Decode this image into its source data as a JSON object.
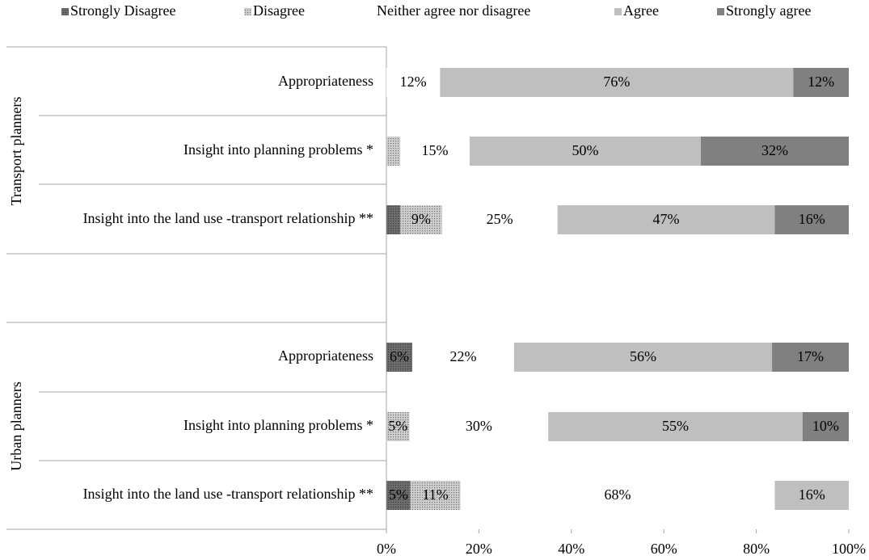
{
  "chart_data": {
    "type": "stacked-bar-horizontal",
    "groups": [
      {
        "name": "Transport planners",
        "categories": [
          "Appropriateness",
          "Insight into planning problems *",
          "Insight into the land use -transport relationship **"
        ]
      },
      {
        "name": "Urban planners",
        "categories": [
          "Appropriateness",
          "Insight into planning problems *",
          "Insight into the land use -transport relationship **"
        ]
      }
    ],
    "series": [
      {
        "name": "Strongly Disagree",
        "color": "#6e6e6e",
        "hatch": "dots",
        "values": [
          0,
          0,
          3,
          5.6,
          0,
          5.2
        ],
        "value_labels": [
          null,
          null,
          null,
          "6%",
          null,
          "5%"
        ]
      },
      {
        "name": "Disagree",
        "color": "#cfcfcf",
        "hatch": "dots",
        "values": [
          0,
          3,
          9,
          0,
          5,
          10.8
        ],
        "value_labels": [
          null,
          null,
          "9%",
          null,
          "5%",
          "11%"
        ]
      },
      {
        "name": "Neither agree nor disagree",
        "color": "#ffffff",
        "values": [
          11.6,
          15,
          25,
          22,
          30,
          68
        ],
        "value_labels": [
          "12%",
          "15%",
          "25%",
          "22%",
          "30%",
          "68%"
        ]
      },
      {
        "name": "Agree",
        "color": "#bfbfbf",
        "values": [
          76.4,
          50,
          47,
          55.8,
          55,
          16
        ],
        "value_labels": [
          "76%",
          "50%",
          "47%",
          "56%",
          "55%",
          "16%"
        ]
      },
      {
        "name": "Strongly agree",
        "color": "#808080",
        "values": [
          12,
          32,
          16,
          16.6,
          10,
          0
        ],
        "value_labels": [
          "12%",
          "32%",
          "16%",
          "17%",
          "10%",
          null
        ]
      }
    ],
    "xlim": [
      0,
      100
    ],
    "xticks": [
      {
        "value": 0,
        "label": "0%"
      },
      {
        "value": 20,
        "label": "20%"
      },
      {
        "value": 40,
        "label": "40%"
      },
      {
        "value": 60,
        "label": "60%"
      },
      {
        "value": 80,
        "label": "80%"
      },
      {
        "value": 100,
        "label": "100%"
      }
    ]
  }
}
